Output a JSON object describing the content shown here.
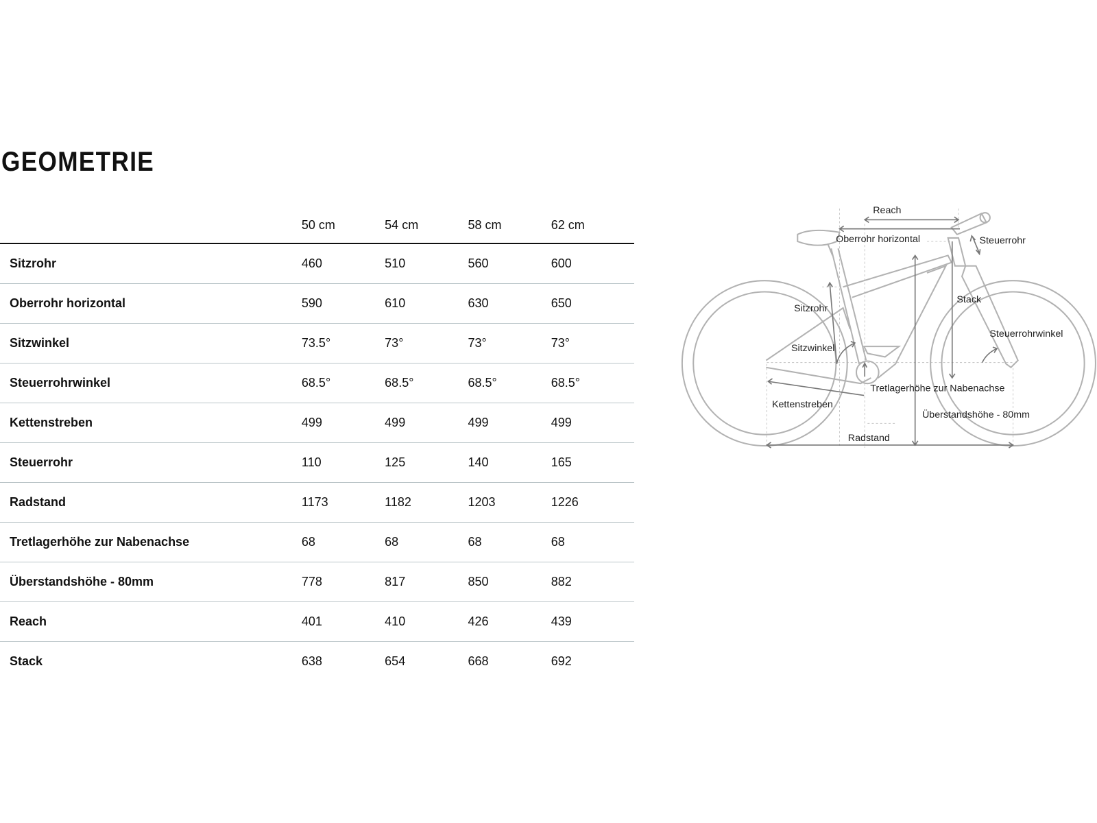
{
  "title": "GEOMETRIE",
  "columns": [
    "50 cm",
    "54 cm",
    "58 cm",
    "62 cm"
  ],
  "rows": [
    {
      "label": "Sitzrohr",
      "values": [
        "460",
        "510",
        "560",
        "600"
      ]
    },
    {
      "label": "Oberrohr horizontal",
      "values": [
        "590",
        "610",
        "630",
        "650"
      ]
    },
    {
      "label": "Sitzwinkel",
      "values": [
        "73.5°",
        "73°",
        "73°",
        "73°"
      ]
    },
    {
      "label": "Steuerrohrwinkel",
      "values": [
        "68.5°",
        "68.5°",
        "68.5°",
        "68.5°"
      ]
    },
    {
      "label": "Kettenstreben",
      "values": [
        "499",
        "499",
        "499",
        "499"
      ]
    },
    {
      "label": "Steuerrohr",
      "values": [
        "110",
        "125",
        "140",
        "165"
      ]
    },
    {
      "label": "Radstand",
      "values": [
        "1173",
        "1182",
        "1203",
        "1226"
      ]
    },
    {
      "label": "Tretlagerhöhe zur Nabenachse",
      "values": [
        "68",
        "68",
        "68",
        "68"
      ]
    },
    {
      "label": "Überstandshöhe - 80mm",
      "values": [
        "778",
        "817",
        "850",
        "882"
      ]
    },
    {
      "label": "Reach",
      "values": [
        "401",
        "410",
        "426",
        "439"
      ]
    },
    {
      "label": "Stack",
      "values": [
        "638",
        "654",
        "668",
        "692"
      ]
    }
  ],
  "diagram": {
    "reach": "Reach",
    "oberrohr": "Oberrohr horizontal",
    "steuerrohr": "Steuerrohr",
    "stack": "Stack",
    "sitzrohr": "Sitzrohr",
    "steuerrohrwinkel": "Steuerrohrwinkel",
    "sitzwinkel": "Sitzwinkel",
    "tretlager": "Tretlagerhöhe zur Nabenachse",
    "kettenstreben": "Kettenstreben",
    "ueberstand": "Überstandshöhe - 80mm",
    "radstand": "Radstand"
  }
}
